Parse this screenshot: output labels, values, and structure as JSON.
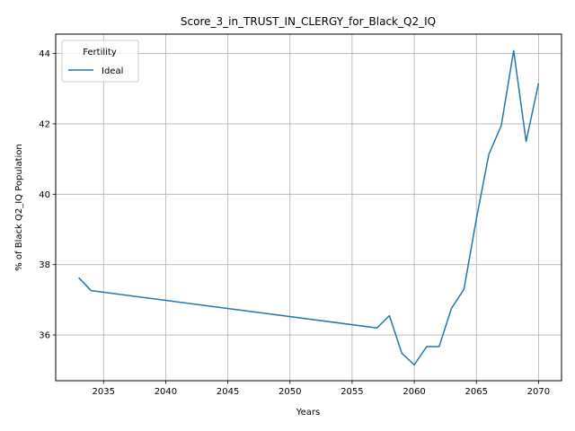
{
  "chart_data": {
    "type": "line",
    "title": "Score_3_in_TRUST_IN_CLERGY_for_Black_Q2_IQ",
    "xlabel": "Years",
    "ylabel": "% of Black Q2_IQ Population",
    "xlim": [
      2031.15,
      2071.85
    ],
    "ylim": [
      34.7,
      44.55
    ],
    "xticks": [
      2035,
      2040,
      2045,
      2050,
      2055,
      2060,
      2065,
      2070
    ],
    "yticks": [
      36,
      38,
      40,
      42,
      44
    ],
    "grid": true,
    "legend": {
      "title": "Fertility",
      "placement": "top-left"
    },
    "series": [
      {
        "name": "Ideal",
        "color": "#1f77b4",
        "x": [
          2033,
          2034,
          2057,
          2058,
          2059,
          2060,
          2061,
          2062,
          2063,
          2064,
          2065,
          2066,
          2067,
          2068,
          2069,
          2070
        ],
        "y": [
          37.63,
          37.26,
          36.2,
          36.55,
          35.48,
          35.15,
          35.67,
          35.67,
          36.76,
          37.3,
          39.3,
          41.13,
          41.95,
          44.08,
          41.5,
          43.15
        ]
      }
    ]
  }
}
